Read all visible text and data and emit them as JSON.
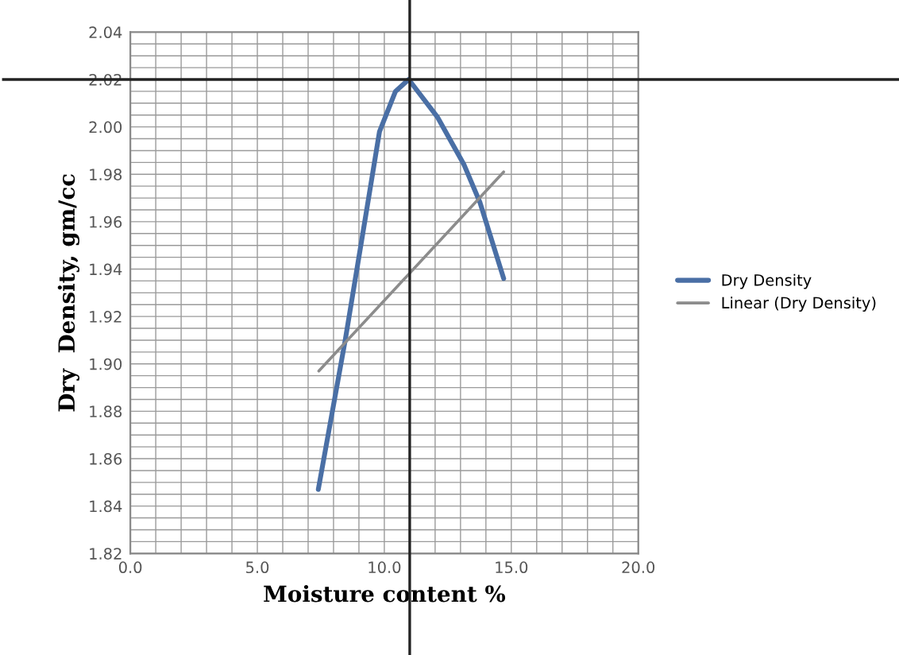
{
  "chart_data": {
    "type": "line",
    "xlabel": "Moisture content %",
    "ylabel": "Dry  Density, gm/cc",
    "xlim": [
      0,
      20
    ],
    "xticks": [
      {
        "value": 0,
        "label": "0.0"
      },
      {
        "value": 5,
        "label": "5.0"
      },
      {
        "value": 10,
        "label": "10.0"
      },
      {
        "value": 15,
        "label": "15.0"
      },
      {
        "value": 20,
        "label": "20.0"
      }
    ],
    "ylim": [
      1.82,
      2.04
    ],
    "yticks": [
      {
        "value": 1.82,
        "label": "1.82"
      },
      {
        "value": 1.84,
        "label": "1.84"
      },
      {
        "value": 1.86,
        "label": "1.86"
      },
      {
        "value": 1.88,
        "label": "1.88"
      },
      {
        "value": 1.9,
        "label": "1.90"
      },
      {
        "value": 1.92,
        "label": "1.92"
      },
      {
        "value": 1.94,
        "label": "1.94"
      },
      {
        "value": 1.96,
        "label": "1.96"
      },
      {
        "value": 1.98,
        "label": "1.98"
      },
      {
        "value": 2.0,
        "label": "2.00"
      },
      {
        "value": 2.02,
        "label": "2.02"
      },
      {
        "value": 2.04,
        "label": "2.04"
      }
    ],
    "grid": true,
    "legend": "right",
    "marker": "none",
    "line_style": "solid",
    "series": [
      {
        "name": "Dry Density",
        "color": "#4a6fa5",
        "x": [
          7.4,
          8.46,
          9.29,
          9.81,
          10.44,
          10.96,
          12.1,
          13.14,
          13.77,
          14.7
        ],
        "values": [
          1.847,
          1.91,
          1.964,
          1.998,
          2.015,
          2.02,
          2.004,
          1.984,
          1.968,
          1.936
        ]
      },
      {
        "name": "Linear (Dry Density)",
        "color": "#8c8c8c",
        "x": [
          7.42,
          14.7
        ],
        "values": [
          1.897,
          1.981
        ]
      }
    ],
    "ref_lines": [
      {
        "axis": "x",
        "value": 11.0,
        "color": "#222222"
      },
      {
        "axis": "y",
        "value": 2.02,
        "color": "#222222"
      }
    ]
  }
}
